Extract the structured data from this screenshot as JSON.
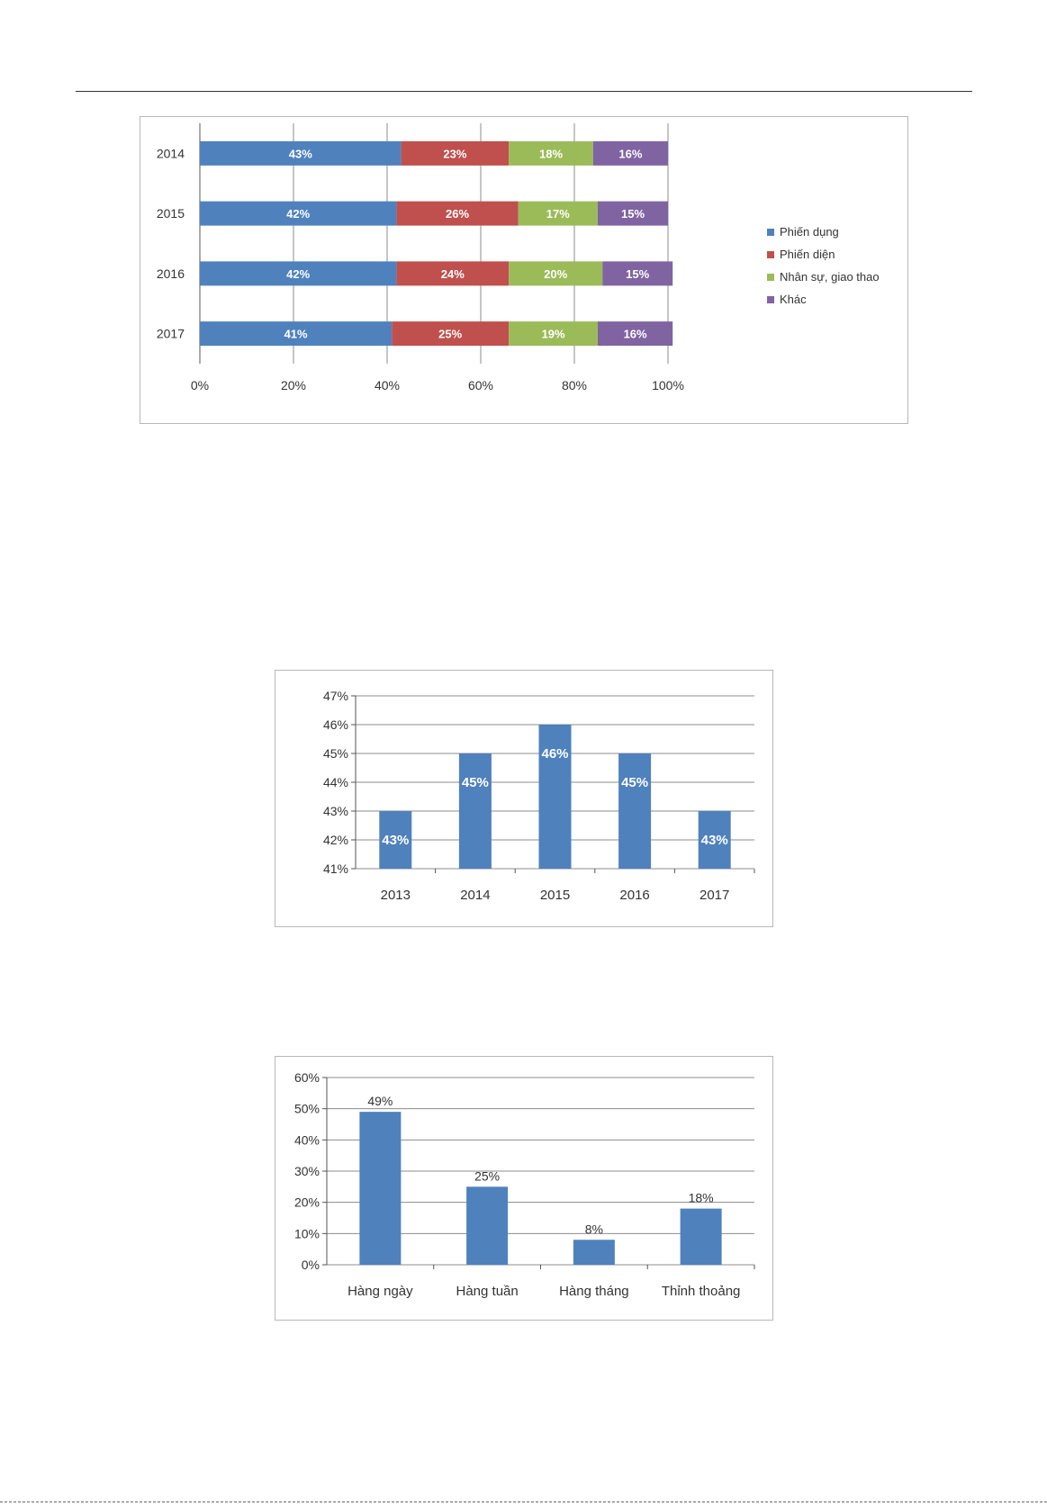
{
  "colors": {
    "blue": "#4f81bd",
    "red": "#c0504d",
    "green": "#9bbb59",
    "purple": "#8064a2",
    "grid": "#8c8c8c",
    "frame": "#b8b8b8",
    "axis_text": "#333333"
  },
  "chart_data": [
    {
      "type": "bar",
      "orientation": "horizontal",
      "stacked": "percent",
      "categories": [
        "2014",
        "2015",
        "2016",
        "2017"
      ],
      "series": [
        {
          "name": "Phiến dụng",
          "values": [
            43,
            42,
            42,
            41
          ],
          "labels": [
            "43%",
            "42%",
            "42%",
            "41%"
          ],
          "color": "#4f81bd"
        },
        {
          "name": "Phiến diện",
          "values": [
            23,
            26,
            24,
            25
          ],
          "labels": [
            "23%",
            "26%",
            "24%",
            "25%"
          ],
          "color": "#c0504d"
        },
        {
          "name": "Nhân sự, giao thao",
          "values": [
            18,
            17,
            20,
            19
          ],
          "labels": [
            "18%",
            "17%",
            "20%",
            "19%"
          ],
          "color": "#9bbb59"
        },
        {
          "name": "Khác",
          "values": [
            16,
            15,
            15,
            16
          ],
          "labels": [
            "16%",
            "15%",
            "15%",
            "16%"
          ],
          "color": "#8064a2"
        }
      ],
      "xlim": [
        0,
        100
      ],
      "xticks": [
        "0%",
        "20%",
        "40%",
        "60%",
        "80%",
        "100%"
      ],
      "grid": "vertical",
      "legend": "right"
    },
    {
      "type": "bar",
      "categories": [
        "2013",
        "2014",
        "2015",
        "2016",
        "2017"
      ],
      "values": [
        43,
        45,
        46,
        45,
        43
      ],
      "labels": [
        "43%",
        "45%",
        "46%",
        "45%",
        "43%"
      ],
      "ylim": [
        41,
        47
      ],
      "yticks": [
        "41%",
        "42%",
        "43%",
        "44%",
        "45%",
        "46%",
        "47%"
      ],
      "grid": "horizontal",
      "legend": "none",
      "color": "#4f81bd"
    },
    {
      "type": "bar",
      "categories": [
        "Hàng ngày",
        "Hàng tuần",
        "Hàng tháng",
        "Thỉnh thoảng"
      ],
      "values": [
        49,
        25,
        8,
        18
      ],
      "labels": [
        "49%",
        "25%",
        "8%",
        "18%"
      ],
      "ylim": [
        0,
        60
      ],
      "yticks": [
        "0%",
        "10%",
        "20%",
        "30%",
        "40%",
        "50%",
        "60%"
      ],
      "grid": "horizontal",
      "legend": "none",
      "color": "#4f81bd"
    }
  ]
}
